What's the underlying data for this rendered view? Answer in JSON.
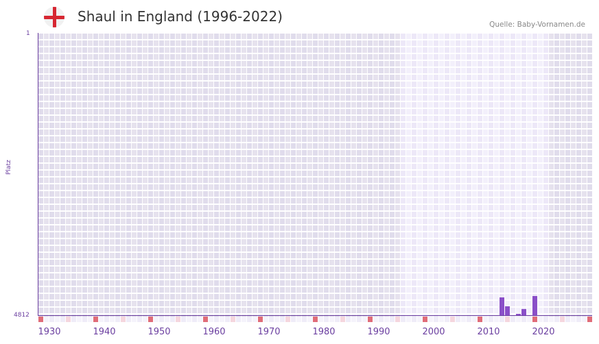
{
  "header": {
    "title": "Shaul in England (1996-2022)",
    "source": "Quelle: Baby-Vornamen.de",
    "flag_icon": "england-flag-icon"
  },
  "colors": {
    "accent": "#6b3fa0",
    "bar": "#8a4fc8",
    "decade_marker": "#e06c78",
    "halfdecade_marker": "#f5d6de",
    "highlight_region": "#efeafa",
    "outer_region": "#e2ddec"
  },
  "chart_data": {
    "type": "bar",
    "title": "Shaul in England (1996-2022)",
    "xlabel": "",
    "ylabel": "Platz",
    "y_inverted": true,
    "ylim": [
      4812,
      1
    ],
    "y_ticks": [
      "1",
      "4812"
    ],
    "x_range": [
      1930,
      2030
    ],
    "x_ticks": [
      "1930",
      "1940",
      "1950",
      "1960",
      "1970",
      "1980",
      "1990",
      "2000",
      "2010",
      "2020"
    ],
    "highlight_range": [
      1996,
      2022
    ],
    "categories": [
      "2014",
      "2015",
      "2017",
      "2018",
      "2020"
    ],
    "values": [
      4508,
      4660,
      4790,
      4707,
      4485
    ],
    "grid": true,
    "legend": null
  }
}
